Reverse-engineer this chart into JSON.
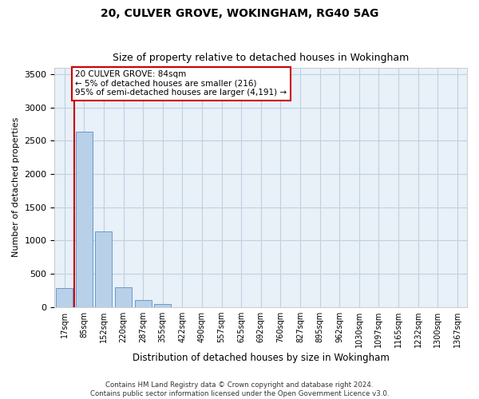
{
  "title": "20, CULVER GROVE, WOKINGHAM, RG40 5AG",
  "subtitle": "Size of property relative to detached houses in Wokingham",
  "xlabel": "Distribution of detached houses by size in Wokingham",
  "ylabel": "Number of detached properties",
  "bar_color": "#b8d0e8",
  "bar_edge_color": "#6699cc",
  "grid_color": "#c0d0e0",
  "background_color": "#e8f0f8",
  "categories": [
    "17sqm",
    "85sqm",
    "152sqm",
    "220sqm",
    "287sqm",
    "355sqm",
    "422sqm",
    "490sqm",
    "557sqm",
    "625sqm",
    "692sqm",
    "760sqm",
    "827sqm",
    "895sqm",
    "962sqm",
    "1030sqm",
    "1097sqm",
    "1165sqm",
    "1232sqm",
    "1300sqm",
    "1367sqm"
  ],
  "values": [
    285,
    2640,
    1140,
    295,
    100,
    50,
    0,
    0,
    0,
    0,
    0,
    0,
    0,
    0,
    0,
    0,
    0,
    0,
    0,
    0,
    0
  ],
  "ylim": [
    0,
    3600
  ],
  "yticks": [
    0,
    500,
    1000,
    1500,
    2000,
    2500,
    3000,
    3500
  ],
  "annotation_line1": "20 CULVER GROVE: 84sqm",
  "annotation_line2": "← 5% of detached houses are smaller (216)",
  "annotation_line3": "95% of semi-detached houses are larger (4,191) →",
  "annotation_box_color": "#ffffff",
  "annotation_box_edge": "#cc0000",
  "property_line_color": "#cc0000",
  "footer_line1": "Contains HM Land Registry data © Crown copyright and database right 2024.",
  "footer_line2": "Contains public sector information licensed under the Open Government Licence v3.0."
}
